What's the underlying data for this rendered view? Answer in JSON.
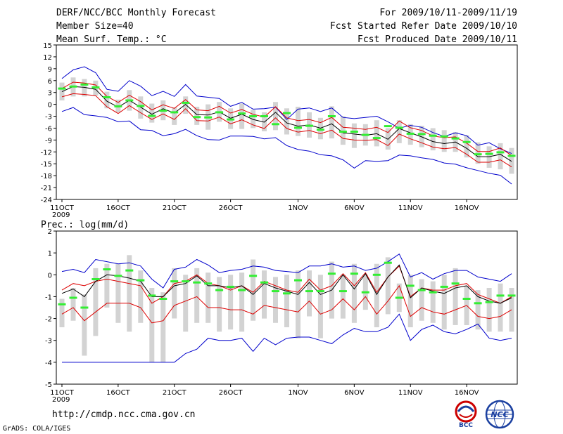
{
  "header": {
    "title": "DERF/NCC/BCC Monthly Forecast",
    "member_size": "Member Size=40",
    "variable": "Mean Surf. Temp.: °C",
    "period": "For 2009/10/11-2009/11/19",
    "started": "Fcst Started Refer Date 2009/10/10",
    "produced": "Fcst Produced Date 2009/10/11"
  },
  "footer": {
    "url": "http://cmdp.ncc.cma.gov.cn",
    "credit": "GrADS: COLA/IGES"
  },
  "logos": {
    "bcc": "BCC",
    "ncc": "NCC"
  },
  "colors": {
    "envelope": "#0000cc",
    "spread": "#dd0000",
    "mean": "#000000",
    "member_box": "#d3d3d3",
    "median": "#33ee33"
  },
  "chart_data": [
    {
      "type": "line",
      "title": "Mean Surf. Temp.: °C",
      "x_tick_labels": [
        "11OCT",
        "16OCT",
        "21OCT",
        "26OCT",
        "1NOV",
        "6NOV",
        "11NOV",
        "16NOV"
      ],
      "x_tick_days": [
        1,
        6,
        11,
        16,
        22,
        27,
        32,
        37
      ],
      "year_label": "2009",
      "ylim": [
        -24,
        15
      ],
      "y_ticks": [
        15,
        12,
        9,
        6,
        3,
        0,
        -3,
        -6,
        -9,
        -12,
        -15,
        -18,
        -21,
        -24
      ],
      "series": [
        {
          "name": "max",
          "values": [
            6.5,
            8.7,
            9.5,
            8.0,
            3.8,
            3.3,
            6.0,
            4.6,
            2.2,
            3.3,
            2.0,
            5.0,
            2.1,
            1.8,
            1.5,
            -0.5,
            0.5,
            -1.2,
            -1.1,
            -0.7,
            -3.8,
            -1.2,
            -0.9,
            -1.8,
            -0.9,
            -3.3,
            -3.6,
            -3.3,
            -3.0,
            -4.4,
            -6.0,
            -5.3,
            -5.8,
            -7.1,
            -8.1,
            -7.2,
            -7.9,
            -10.3,
            -9.7,
            -11.2,
            -12.4
          ]
        },
        {
          "name": "spread_high",
          "values": [
            4.0,
            5.6,
            5.4,
            4.9,
            2.0,
            0.5,
            2.3,
            0.7,
            -1.4,
            -0.1,
            -1.0,
            1.2,
            -1.4,
            -1.6,
            -0.5,
            -2.2,
            -1.3,
            -2.5,
            -3.2,
            -0.6,
            -3.4,
            -4.1,
            -3.8,
            -4.6,
            -3.3,
            -5.8,
            -6.0,
            -6.3,
            -5.8,
            -7.1,
            -4.2,
            -5.9,
            -6.6,
            -8.0,
            -8.4,
            -8.2,
            -9.8,
            -11.9,
            -11.9,
            -11.0,
            -12.9
          ]
        },
        {
          "name": "mean",
          "values": [
            3.2,
            4.5,
            4.3,
            3.8,
            0.8,
            -0.7,
            1.0,
            -0.7,
            -2.5,
            -1.1,
            -2.2,
            0.0,
            -2.6,
            -2.7,
            -1.9,
            -3.5,
            -2.5,
            -3.8,
            -4.5,
            -2.0,
            -4.7,
            -5.5,
            -5.2,
            -6.0,
            -4.9,
            -7.2,
            -7.5,
            -7.8,
            -7.4,
            -8.8,
            -6.1,
            -7.2,
            -8.2,
            -9.4,
            -9.9,
            -9.5,
            -11.1,
            -13.2,
            -13.2,
            -12.6,
            -14.4
          ]
        },
        {
          "name": "spread_low",
          "values": [
            1.9,
            2.7,
            2.5,
            2.2,
            -0.6,
            -2.3,
            -0.3,
            -2.1,
            -3.8,
            -2.4,
            -3.8,
            -1.1,
            -4.1,
            -4.2,
            -3.2,
            -4.9,
            -3.9,
            -5.2,
            -6.1,
            -3.4,
            -6.1,
            -7.0,
            -6.6,
            -7.4,
            -6.5,
            -8.6,
            -9.0,
            -9.1,
            -8.9,
            -10.4,
            -7.5,
            -8.7,
            -9.7,
            -10.8,
            -11.2,
            -10.9,
            -12.6,
            -14.6,
            -14.6,
            -14.0,
            -15.8
          ]
        },
        {
          "name": "min",
          "values": [
            -1.8,
            -0.8,
            -2.6,
            -2.9,
            -3.3,
            -4.4,
            -4.2,
            -6.4,
            -6.6,
            -7.9,
            -7.4,
            -6.3,
            -7.9,
            -8.9,
            -9.0,
            -8.0,
            -8.0,
            -8.1,
            -8.7,
            -8.4,
            -10.4,
            -11.4,
            -11.8,
            -12.7,
            -13.0,
            -14.0,
            -16.1,
            -14.2,
            -14.4,
            -14.2,
            -12.8,
            -13.0,
            -13.5,
            -13.9,
            -14.8,
            -15.1,
            -16.0,
            -16.7,
            -17.4,
            -17.9,
            -20.1
          ]
        },
        {
          "name": "median",
          "values": [
            4.0,
            4.5,
            5.0,
            4.3,
            1.8,
            -0.5,
            1.0,
            -0.4,
            -2.9,
            -1.6,
            -2.0,
            0.4,
            -3.2,
            -3.3,
            -2.0,
            -3.8,
            -2.3,
            -3.0,
            -3.0,
            -5.0,
            -2.2,
            -5.9,
            -5.4,
            -6.4,
            -3.0,
            -6.9,
            -6.9,
            -7.7,
            -8.5,
            -5.5,
            -5.9,
            -7.4,
            -7.5,
            -7.9,
            -8.1,
            -8.6,
            -9.5,
            -12.6,
            -12.5,
            -12.1,
            -13.0
          ]
        },
        {
          "name": "box_top",
          "values": [
            5.5,
            6.8,
            6.4,
            6.0,
            3.2,
            1.2,
            3.6,
            2.0,
            0.2,
            1.0,
            -0.8,
            2.0,
            -0.6,
            0.0,
            0.6,
            -1.0,
            0.2,
            -1.4,
            -2.0,
            0.6,
            -1.0,
            -0.6,
            -2.0,
            -3.4,
            -0.5,
            -3.0,
            -4.8,
            -5.0,
            -4.0,
            -6.0,
            -4.0,
            -5.0,
            -5.4,
            -6.0,
            -6.5,
            -7.0,
            -7.8,
            -9.6,
            -10.6,
            -9.8,
            -11.0
          ]
        },
        {
          "name": "box_bottom",
          "values": [
            1.0,
            2.0,
            2.0,
            2.2,
            -1.0,
            -2.0,
            -1.6,
            -3.6,
            -4.6,
            -4.0,
            -5.2,
            -2.4,
            -5.2,
            -6.4,
            -4.4,
            -6.2,
            -6.2,
            -6.0,
            -6.8,
            -6.5,
            -7.6,
            -8.0,
            -8.4,
            -8.8,
            -8.6,
            -10.2,
            -11.0,
            -10.4,
            -10.6,
            -11.4,
            -9.8,
            -10.2,
            -10.8,
            -11.6,
            -12.0,
            -12.0,
            -13.4,
            -15.0,
            -16.0,
            -16.4,
            -17.5
          ]
        }
      ]
    },
    {
      "type": "line",
      "title": "Prec.: log(mm/d)",
      "x_tick_labels": [
        "11OCT",
        "16OCT",
        "21OCT",
        "26OCT",
        "1NOV",
        "6NOV",
        "11NOV",
        "16NOV"
      ],
      "x_tick_days": [
        1,
        6,
        11,
        16,
        22,
        27,
        32,
        37
      ],
      "year_label": "2009",
      "ylim": [
        -5,
        2
      ],
      "y_ticks": [
        2,
        1,
        0,
        -1,
        -2,
        -3,
        -4,
        -5
      ],
      "series": [
        {
          "name": "max",
          "values": [
            0.15,
            0.25,
            0.1,
            0.7,
            0.6,
            0.5,
            0.55,
            0.4,
            -0.2,
            -0.6,
            0.25,
            0.35,
            0.7,
            0.45,
            0.1,
            0.2,
            0.25,
            0.4,
            0.35,
            0.2,
            0.15,
            0.1,
            0.4,
            0.4,
            0.5,
            0.35,
            0.4,
            0.2,
            0.3,
            0.6,
            0.95,
            -0.1,
            0.1,
            -0.2,
            0.05,
            0.2,
            0.2,
            -0.1,
            -0.2,
            -0.3,
            0.05
          ]
        },
        {
          "name": "spread_high",
          "values": [
            -0.7,
            -0.4,
            -0.5,
            -0.3,
            -0.2,
            -0.3,
            -0.4,
            -0.5,
            -1.3,
            -1.0,
            -0.4,
            -0.3,
            0.0,
            -0.4,
            -0.5,
            -0.7,
            -0.5,
            -0.8,
            -0.3,
            -0.5,
            -0.7,
            -0.8,
            -0.2,
            -0.7,
            -0.5,
            0.05,
            -0.5,
            0.1,
            -0.8,
            -0.1,
            0.4,
            -1.0,
            -0.6,
            -0.7,
            -0.7,
            -0.5,
            -0.4,
            -0.9,
            -1.1,
            -1.3,
            -1.0
          ]
        },
        {
          "name": "mean",
          "values": [
            -0.85,
            -0.65,
            -1.0,
            -0.3,
            0.0,
            -0.05,
            -0.15,
            -0.3,
            -1.0,
            -1.0,
            -0.5,
            -0.4,
            -0.05,
            -0.5,
            -0.5,
            -0.6,
            -0.5,
            -0.9,
            -0.4,
            -0.6,
            -0.75,
            -0.9,
            -0.35,
            -0.9,
            -0.7,
            0.0,
            -0.65,
            0.05,
            -0.9,
            -0.1,
            0.45,
            -1.05,
            -0.6,
            -0.75,
            -0.85,
            -0.6,
            -0.5,
            -1.0,
            -1.2,
            -1.3,
            -1.05
          ]
        },
        {
          "name": "spread_low",
          "values": [
            -1.8,
            -1.5,
            -2.1,
            -1.7,
            -1.3,
            -1.3,
            -1.3,
            -1.5,
            -2.2,
            -2.1,
            -1.4,
            -1.2,
            -1.0,
            -1.5,
            -1.5,
            -1.6,
            -1.6,
            -1.8,
            -1.4,
            -1.5,
            -1.6,
            -1.7,
            -1.2,
            -1.8,
            -1.6,
            -1.1,
            -1.6,
            -1.0,
            -1.8,
            -1.2,
            -0.5,
            -1.9,
            -1.5,
            -1.7,
            -1.8,
            -1.6,
            -1.4,
            -1.9,
            -2.0,
            -1.9,
            -1.6
          ]
        },
        {
          "name": "min",
          "values": [
            -4.0,
            -4.0,
            -4.0,
            -4.0,
            -4.0,
            -4.0,
            -4.0,
            -4.0,
            -4.0,
            -4.0,
            -4.0,
            -3.6,
            -3.4,
            -2.9,
            -3.0,
            -3.0,
            -2.9,
            -3.5,
            -2.9,
            -3.2,
            -2.9,
            -2.85,
            -2.85,
            -3.0,
            -3.15,
            -2.75,
            -2.45,
            -2.6,
            -2.6,
            -2.4,
            -1.8,
            -3.0,
            -2.5,
            -2.3,
            -2.6,
            -2.7,
            -2.5,
            -2.25,
            -2.9,
            -3.0,
            -2.9
          ]
        },
        {
          "name": "median",
          "values": [
            -1.35,
            -1.05,
            -1.5,
            -0.2,
            0.25,
            -0.05,
            0.2,
            -0.25,
            -0.95,
            -1.1,
            -0.3,
            -0.3,
            -0.35,
            -0.4,
            -0.7,
            -0.55,
            -0.7,
            -0.05,
            -0.35,
            -0.75,
            -0.85,
            -0.25,
            -0.75,
            -0.75,
            0.05,
            -0.75,
            0.05,
            -0.8,
            0.0,
            0.55,
            -1.05,
            -0.5,
            -0.7,
            -0.8,
            -0.55,
            -0.4,
            -1.1,
            -1.3,
            -1.25,
            -0.95,
            -0.95
          ]
        },
        {
          "name": "box_top",
          "values": [
            -1.1,
            -0.6,
            -0.9,
            0.3,
            0.5,
            0.5,
            0.9,
            0.2,
            -0.6,
            -0.8,
            0.3,
            0.0,
            0.3,
            0.1,
            -0.1,
            0.0,
            0.1,
            0.7,
            0.2,
            -0.1,
            0.0,
            0.2,
            0.2,
            0.0,
            0.6,
            0.0,
            0.5,
            0.0,
            0.5,
            0.8,
            -0.4,
            0.0,
            -0.2,
            -0.3,
            0.0,
            0.3,
            -0.5,
            -0.7,
            -0.6,
            -0.4,
            -0.6
          ]
        },
        {
          "name": "box_bottom",
          "values": [
            -2.4,
            -2.1,
            -3.7,
            -2.8,
            -1.5,
            -2.2,
            -2.6,
            -2.2,
            -4.0,
            -4.0,
            -2.0,
            -2.6,
            -2.2,
            -2.2,
            -2.6,
            -2.5,
            -2.6,
            -2.1,
            -2.0,
            -2.2,
            -2.4,
            -2.9,
            -1.9,
            -2.9,
            -2.0,
            -2.0,
            -2.2,
            -1.6,
            -2.4,
            -1.8,
            -1.7,
            -2.4,
            -2.1,
            -2.2,
            -2.5,
            -2.3,
            -2.3,
            -2.5,
            -2.6,
            -2.6,
            -2.6
          ]
        }
      ]
    }
  ]
}
